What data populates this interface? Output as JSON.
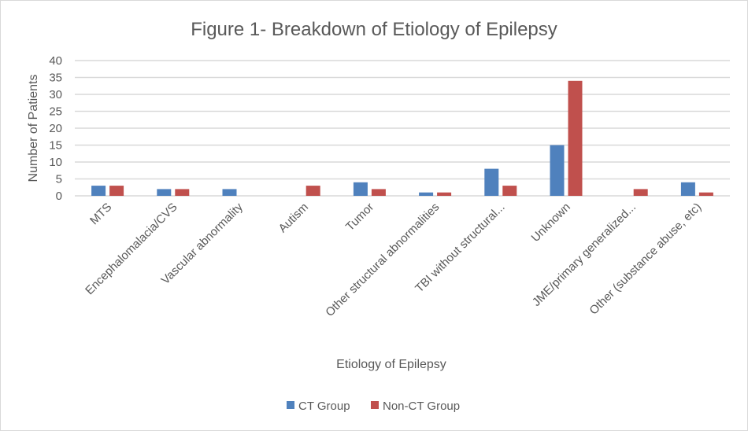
{
  "chart_data": {
    "type": "bar",
    "title": "Figure 1- Breakdown of Etiology of Epilepsy",
    "xlabel": "Etiology of Epilepsy",
    "ylabel": "Number of Patients",
    "ylim": [
      0,
      40
    ],
    "yticks": [
      0,
      5,
      10,
      15,
      20,
      25,
      30,
      35,
      40
    ],
    "grid": true,
    "legend_position": "bottom",
    "categories": [
      "MTS",
      "Encephalomalacia/CVS",
      "Vascular abnormality",
      "Autism",
      "Tumor",
      "Other structural abnormalities",
      "TBI without structural...",
      "Unknown",
      "JME/primary generalized...",
      "Other (substance abuse, etc)"
    ],
    "series": [
      {
        "name": "CT Group",
        "color": "#4f81bd",
        "values": [
          3,
          2,
          2,
          0,
          4,
          1,
          8,
          15,
          0,
          4
        ]
      },
      {
        "name": "Non-CT Group",
        "color": "#c0504d",
        "values": [
          3,
          2,
          0,
          3,
          2,
          1,
          3,
          34,
          2,
          1
        ]
      }
    ]
  }
}
